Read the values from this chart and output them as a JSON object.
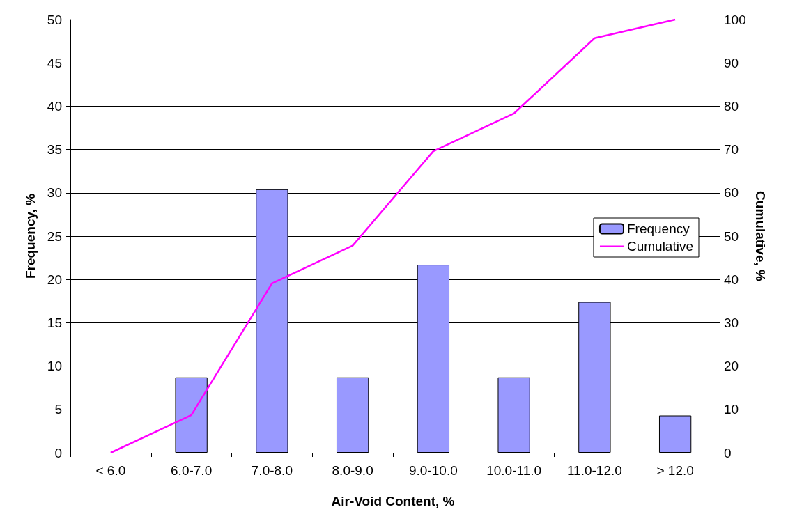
{
  "chart_data": {
    "type": "bar",
    "xlabel": "Air-Void Content, %",
    "ylabel": "Frequency, %",
    "y2label": "Cumulative, %",
    "categories": [
      "< 6.0",
      "6.0-7.0",
      "7.0-8.0",
      "8.0-9.0",
      "9.0-10.0",
      "10.0-11.0",
      "11.0-12.0",
      "> 12.0"
    ],
    "series": [
      {
        "name": "Frequency",
        "color": "#9999ff",
        "values": [
          0,
          8.7,
          30.4,
          8.7,
          21.7,
          8.7,
          17.4,
          4.3
        ]
      },
      {
        "name": "Cumulative",
        "type": "line",
        "axis": "y2",
        "color": "#ff00ff",
        "values": [
          0,
          8.7,
          39.1,
          47.8,
          69.6,
          78.3,
          95.7,
          100
        ]
      }
    ],
    "ylim": [
      0,
      50
    ],
    "yticks": [
      0,
      5,
      10,
      15,
      20,
      25,
      30,
      35,
      40,
      45,
      50
    ],
    "y2lim": [
      0,
      100
    ],
    "y2ticks": [
      0,
      10,
      20,
      30,
      40,
      50,
      60,
      70,
      80,
      90,
      100
    ],
    "grid": "y",
    "legend": "right",
    "marker": "none",
    "line_style": "solid"
  }
}
